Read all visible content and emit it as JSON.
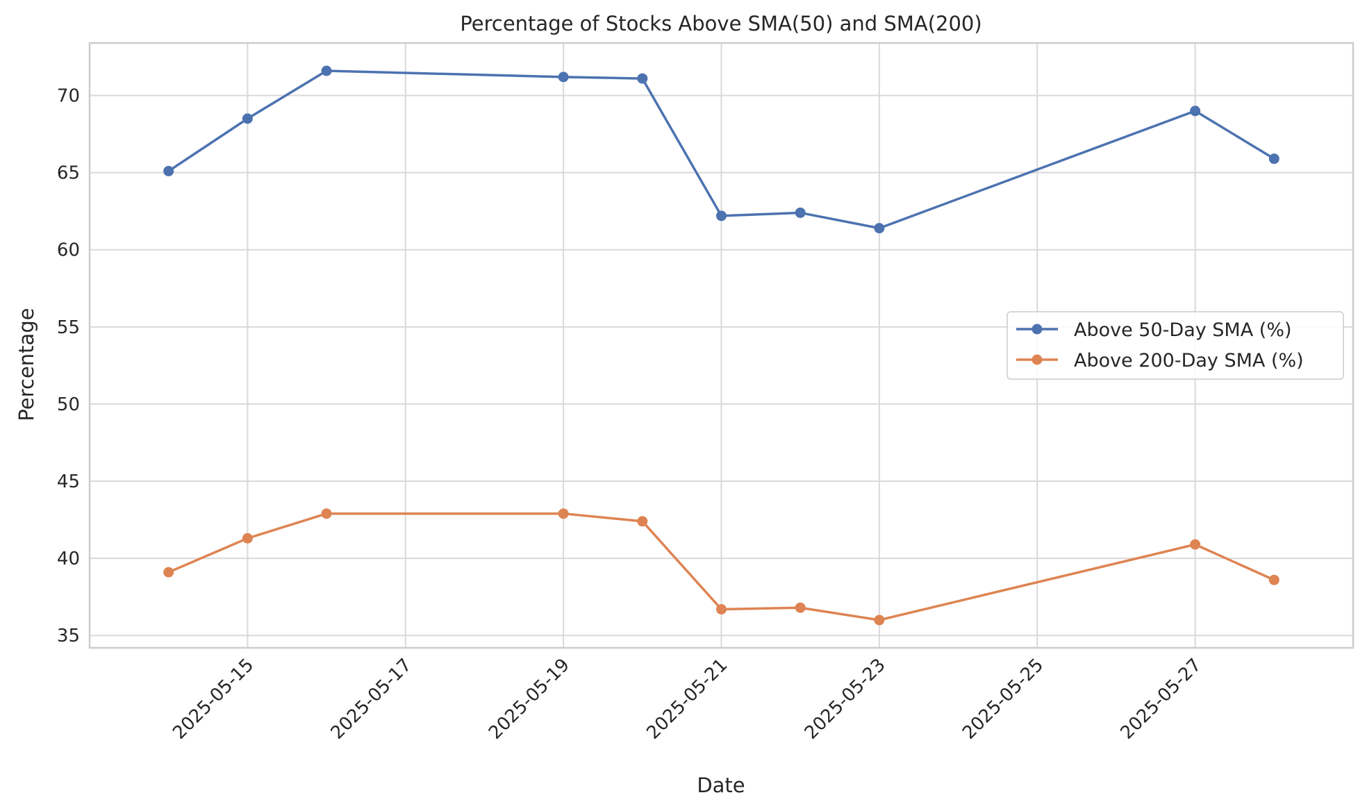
{
  "chart_data": {
    "type": "line",
    "title": "Percentage of Stocks Above SMA(50) and SMA(200)",
    "xlabel": "Date",
    "ylabel": "Percentage",
    "x": [
      "2025-05-14",
      "2025-05-15",
      "2025-05-16",
      "2025-05-19",
      "2025-05-20",
      "2025-05-21",
      "2025-05-22",
      "2025-05-23",
      "2025-05-27",
      "2025-05-28"
    ],
    "xticks": [
      "2025-05-15",
      "2025-05-17",
      "2025-05-19",
      "2025-05-21",
      "2025-05-23",
      "2025-05-25",
      "2025-05-27"
    ],
    "xlim": [
      "2025-05-13",
      "2025-05-29"
    ],
    "yticks": [
      35,
      40,
      45,
      50,
      55,
      60,
      65,
      70
    ],
    "ylim": [
      34.2,
      73.4
    ],
    "grid": true,
    "legend_position": "center-right",
    "series": [
      {
        "name": "Above 50-Day SMA (%)",
        "color": "#4c72b0",
        "marker": "circle",
        "values": [
          65.1,
          68.5,
          71.6,
          71.2,
          71.1,
          62.2,
          62.4,
          61.4,
          69.0,
          65.9
        ]
      },
      {
        "name": "Above 200-Day SMA (%)",
        "color": "#dd8452",
        "marker": "circle",
        "values": [
          39.1,
          41.3,
          42.9,
          42.9,
          42.4,
          36.7,
          36.8,
          36.0,
          40.9,
          38.6
        ]
      }
    ]
  }
}
